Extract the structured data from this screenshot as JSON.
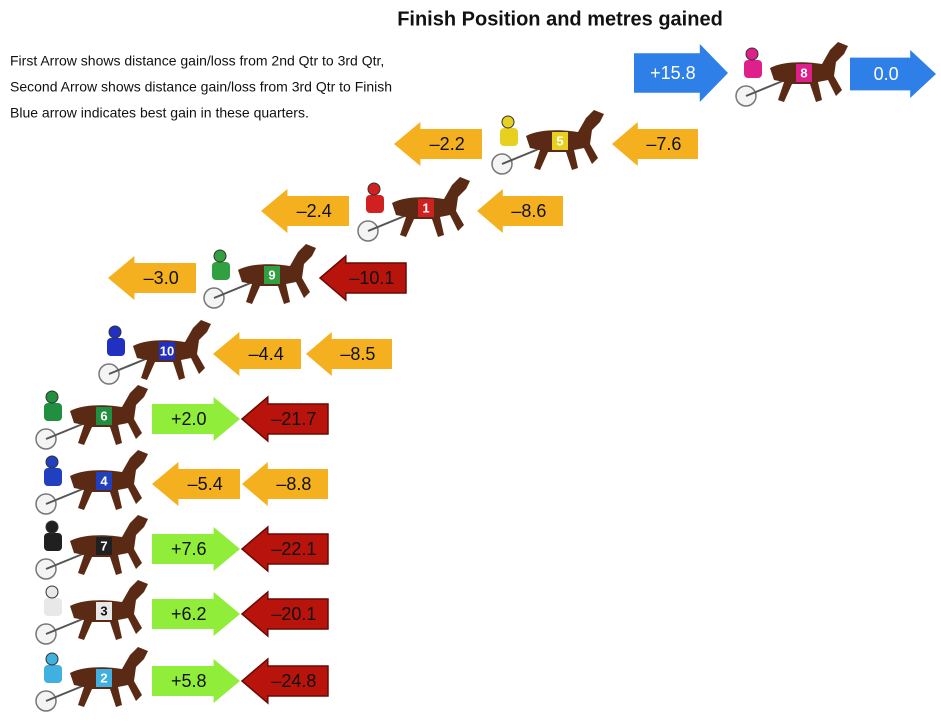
{
  "header": {
    "title": "Finish Position and metres gained"
  },
  "notes": [
    "First Arrow shows distance gain/loss from 2nd Qtr to 3rd Qtr,",
    "Second Arrow shows distance gain/loss from 3rd Qtr to Finish",
    "Blue arrow indicates best gain in these quarters."
  ],
  "rows": [
    {
      "horse": "8",
      "arrows": [
        {
          "label": "+15.8",
          "direction": "right",
          "color": "#2f7fe8"
        },
        {
          "label": "0.0",
          "direction": "right",
          "color": "#2f7fe8"
        }
      ]
    },
    {
      "horse": "5",
      "arrows": [
        {
          "label": "–2.2",
          "direction": "left",
          "color": "#f4b01e"
        },
        {
          "label": "–7.6",
          "direction": "left",
          "color": "#f4b01e"
        }
      ]
    },
    {
      "horse": "1",
      "arrows": [
        {
          "label": "–2.4",
          "direction": "left",
          "color": "#f4b01e"
        },
        {
          "label": "–8.6",
          "direction": "left",
          "color": "#f4b01e"
        }
      ]
    },
    {
      "horse": "9",
      "arrows": [
        {
          "label": "–3.0",
          "direction": "left",
          "color": "#f4b01e"
        },
        {
          "label": "–10.1",
          "direction": "left",
          "color": "#b8140c"
        }
      ]
    },
    {
      "horse": "10",
      "arrows": [
        {
          "label": "–4.4",
          "direction": "left",
          "color": "#f4b01e"
        },
        {
          "label": "–8.5",
          "direction": "left",
          "color": "#f4b01e"
        }
      ]
    },
    {
      "horse": "6",
      "arrows": [
        {
          "label": "+2.0",
          "direction": "right",
          "color": "#90ee3a"
        },
        {
          "label": "–21.7",
          "direction": "left",
          "color": "#b8140c"
        }
      ]
    },
    {
      "horse": "4",
      "arrows": [
        {
          "label": "–5.4",
          "direction": "left",
          "color": "#f4b01e"
        },
        {
          "label": "–8.8",
          "direction": "left",
          "color": "#f4b01e"
        }
      ]
    },
    {
      "horse": "7",
      "arrows": [
        {
          "label": "+7.6",
          "direction": "right",
          "color": "#90ee3a"
        },
        {
          "label": "–22.1",
          "direction": "left",
          "color": "#b8140c"
        }
      ]
    },
    {
      "horse": "3",
      "arrows": [
        {
          "label": "+6.2",
          "direction": "right",
          "color": "#90ee3a"
        },
        {
          "label": "–20.1",
          "direction": "left",
          "color": "#b8140c"
        }
      ]
    },
    {
      "horse": "2",
      "arrows": [
        {
          "label": "+5.8",
          "direction": "right",
          "color": "#90ee3a"
        },
        {
          "label": "–24.8",
          "direction": "left",
          "color": "#b8140c"
        }
      ]
    }
  ]
}
